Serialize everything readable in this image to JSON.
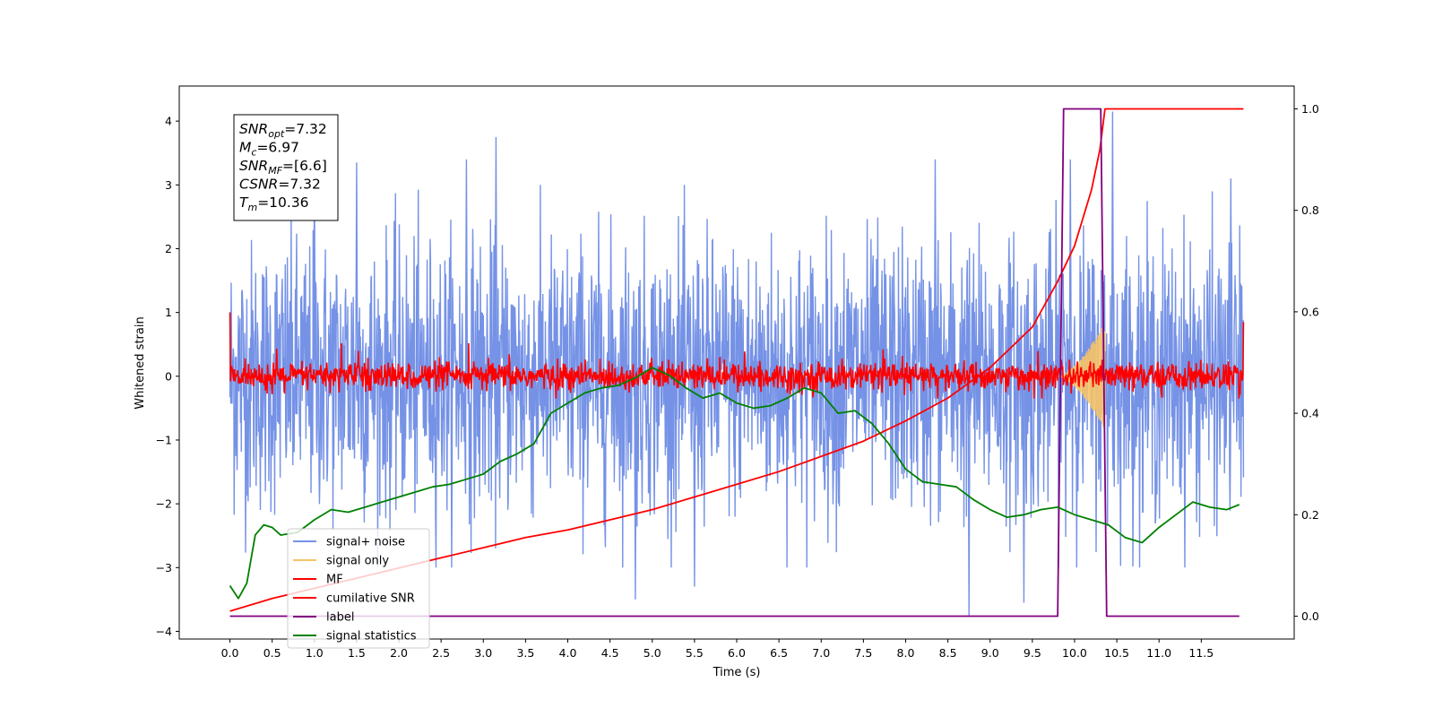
{
  "chart_data": {
    "type": "line",
    "title": "",
    "xlabel": "Time (s)",
    "ylabel": "Whitened strain",
    "xlim": [
      -0.6,
      12.6
    ],
    "ylim": [
      -4.12,
      4.55
    ],
    "ylim_right": [
      -0.045,
      1.045
    ],
    "x_ticks": [
      "0.0",
      "0.5",
      "1.0",
      "1.5",
      "2.0",
      "2.5",
      "3.0",
      "3.5",
      "4.0",
      "4.5",
      "5.0",
      "5.5",
      "6.0",
      "6.5",
      "7.0",
      "7.5",
      "8.0",
      "8.5",
      "9.0",
      "9.5",
      "10.0",
      "10.5",
      "11.0",
      "11.5"
    ],
    "y_ticks_left": [
      "4",
      "3",
      "2",
      "1",
      "0",
      "−1",
      "−2",
      "−3",
      "−4"
    ],
    "y_ticks_right": [
      "1.0",
      "0.8",
      "0.6",
      "0.4",
      "0.2",
      "0.0"
    ],
    "legend_location": "lower-left",
    "annotation": {
      "lines": [
        {
          "sym": "SNR",
          "sub": "opt",
          "val": "=7.32"
        },
        {
          "sym": "M",
          "sub": "c",
          "val": "=6.97"
        },
        {
          "sym": "SNR",
          "sub": "MF",
          "val": "=[6.6]"
        },
        {
          "sym": "CSNR",
          "sub": "",
          "val": "=7.32"
        },
        {
          "sym": "T",
          "sub": "m",
          "val": "=10.36"
        }
      ]
    },
    "series": [
      {
        "name": "signal+ noise",
        "axis": "left",
        "color": "#7592e6",
        "description_kind": "noise_band",
        "x_range": [
          0.0,
          12.0
        ],
        "typical_amplitude": 1.7,
        "peak_points": [
          [
            1.0,
            3.3
          ],
          [
            1.5,
            3.35
          ],
          [
            2.8,
            3.4
          ],
          [
            3.15,
            3.75
          ],
          [
            4.8,
            -3.5
          ],
          [
            5.5,
            -3.3
          ],
          [
            8.75,
            -3.75
          ],
          [
            9.4,
            -3.55
          ],
          [
            10.45,
            4.15
          ],
          [
            9.95,
            3.4
          ],
          [
            8.35,
            3.4
          ],
          [
            11.85,
            3.1
          ]
        ]
      },
      {
        "name": "signal only",
        "axis": "left",
        "color": "#f7c467",
        "description_kind": "chirp",
        "x_range": [
          9.8,
          10.36
        ],
        "peak_amplitude": 0.85
      },
      {
        "name": "MF",
        "axis": "left",
        "color": "#ff0000",
        "description_kind": "noise_band",
        "x_range": [
          0.0,
          12.0
        ],
        "typical_amplitude": 0.3,
        "start_value": 1.0,
        "end_value": 0.85
      },
      {
        "name": "cumilative SNR",
        "axis": "right",
        "color": "#ff0000",
        "x": [
          0.0,
          0.5,
          1.0,
          1.5,
          2.0,
          2.5,
          3.0,
          3.5,
          4.0,
          4.5,
          5.0,
          5.5,
          6.0,
          6.5,
          7.0,
          7.5,
          8.0,
          8.5,
          9.0,
          9.5,
          9.8,
          10.0,
          10.2,
          10.3,
          10.36,
          10.5,
          11.0,
          11.5,
          12.0
        ],
        "values": [
          0.01,
          0.035,
          0.055,
          0.075,
          0.095,
          0.115,
          0.135,
          0.155,
          0.17,
          0.19,
          0.21,
          0.235,
          0.26,
          0.285,
          0.315,
          0.345,
          0.385,
          0.43,
          0.49,
          0.57,
          0.66,
          0.73,
          0.84,
          0.92,
          1.0,
          1.0,
          1.0,
          1.0,
          1.0
        ]
      },
      {
        "name": "label",
        "axis": "right",
        "color": "#800080",
        "x": [
          0.0,
          9.8,
          9.87,
          10.31,
          10.38,
          11.95
        ],
        "values": [
          0.0,
          0.0,
          1.0,
          1.0,
          0.0,
          0.0
        ]
      },
      {
        "name": "signal statistics",
        "axis": "right",
        "color": "#008000",
        "x": [
          0.0,
          0.1,
          0.2,
          0.3,
          0.4,
          0.5,
          0.6,
          0.8,
          1.0,
          1.2,
          1.4,
          1.6,
          1.8,
          2.0,
          2.2,
          2.4,
          2.6,
          2.8,
          3.0,
          3.2,
          3.4,
          3.6,
          3.8,
          4.0,
          4.2,
          4.4,
          4.6,
          4.8,
          5.0,
          5.2,
          5.4,
          5.6,
          5.8,
          6.0,
          6.2,
          6.4,
          6.6,
          6.8,
          7.0,
          7.2,
          7.4,
          7.6,
          7.8,
          8.0,
          8.2,
          8.4,
          8.6,
          8.8,
          9.0,
          9.2,
          9.4,
          9.6,
          9.8,
          10.0,
          10.2,
          10.4,
          10.6,
          10.8,
          11.0,
          11.2,
          11.4,
          11.6,
          11.8,
          11.95
        ],
        "values": [
          0.06,
          0.035,
          0.065,
          0.16,
          0.18,
          0.175,
          0.16,
          0.165,
          0.19,
          0.21,
          0.205,
          0.215,
          0.225,
          0.235,
          0.245,
          0.255,
          0.26,
          0.27,
          0.28,
          0.305,
          0.32,
          0.34,
          0.4,
          0.42,
          0.44,
          0.45,
          0.455,
          0.47,
          0.49,
          0.475,
          0.45,
          0.43,
          0.44,
          0.42,
          0.41,
          0.415,
          0.43,
          0.45,
          0.44,
          0.4,
          0.405,
          0.38,
          0.34,
          0.29,
          0.265,
          0.26,
          0.255,
          0.23,
          0.21,
          0.195,
          0.2,
          0.21,
          0.215,
          0.2,
          0.19,
          0.18,
          0.155,
          0.145,
          0.175,
          0.2,
          0.225,
          0.215,
          0.21,
          0.22
        ]
      }
    ]
  }
}
